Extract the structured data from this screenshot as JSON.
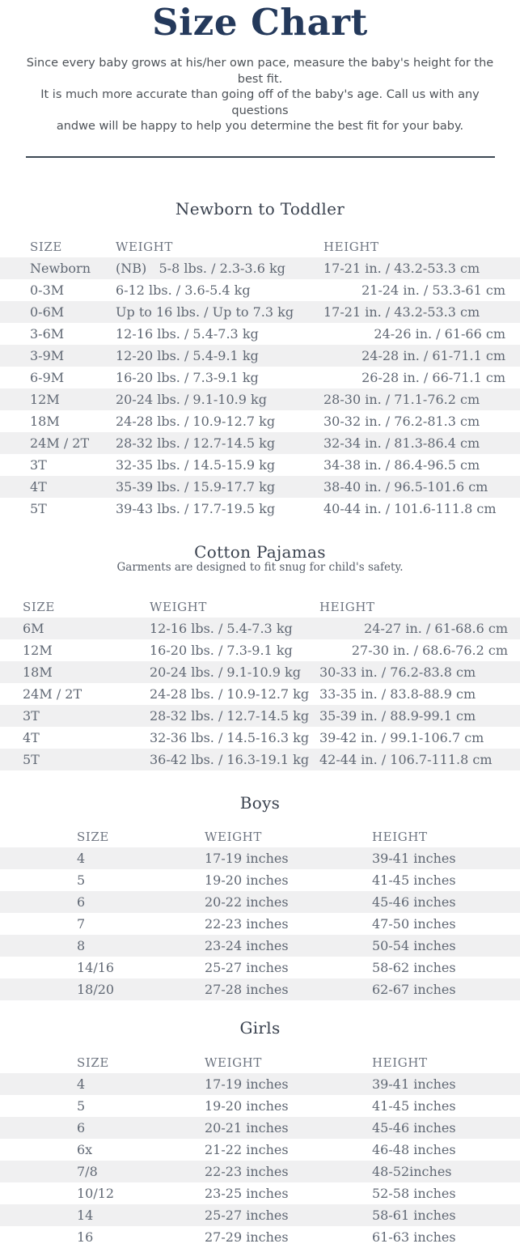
{
  "page": {
    "title": "Size Chart",
    "intro_lines": [
      "Since every baby grows at his/her own pace, measure the baby's height for the best fit.",
      "It is much more accurate than going off of the baby's age. Call us with any questions",
      "andwe will be happy to help you determine the best fit for your baby."
    ]
  },
  "colors": {
    "title_navy": "#24395b",
    "heading_slate": "#39414e",
    "body_text": "#4d5258",
    "table_text": "#5f6773",
    "column_header_text": "#6d7480",
    "row_stripe": "#f0f0f1",
    "divider": "#3d4854",
    "background": "#ffffff"
  },
  "tables": [
    {
      "id": "newborn-to-toddler",
      "title": "Newborn to Toddler",
      "subtitle": null,
      "columns": [
        "SIZE",
        "WEIGHT",
        "HEIGHT"
      ],
      "rows": [
        {
          "size": "Newborn",
          "weight": "(NB)   5-8 lbs. / 2.3-3.6 kg",
          "height": "17-21 in. / 43.2-53.3 cm",
          "height_align": "left"
        },
        {
          "size": "0-3M",
          "weight": "6-12 lbs. / 3.6-5.4 kg",
          "height": "21-24 in. / 53.3-61 cm",
          "height_align": "right"
        },
        {
          "size": "0-6M",
          "weight": "Up to 16 lbs. / Up to 7.3 kg",
          "height": "17-21 in. / 43.2-53.3 cm",
          "height_align": "left"
        },
        {
          "size": "3-6M",
          "weight": "12-16 lbs. / 5.4-7.3 kg",
          "height": "24-26 in. / 61-66 cm",
          "height_align": "right"
        },
        {
          "size": "3-9M",
          "weight": "12-20 lbs. / 5.4-9.1 kg",
          "height": "24-28 in. / 61-71.1 cm",
          "height_align": "right"
        },
        {
          "size": "6-9M",
          "weight": "16-20 lbs. / 7.3-9.1 kg",
          "height": "26-28 in. / 66-71.1 cm",
          "height_align": "right"
        },
        {
          "size": "12M",
          "weight": "20-24 lbs. / 9.1-10.9 kg",
          "height": "28-30 in. / 71.1-76.2 cm",
          "height_align": "left"
        },
        {
          "size": "18M",
          "weight": "24-28 lbs. / 10.9-12.7 kg",
          "height": "30-32 in. / 76.2-81.3 cm",
          "height_align": "left"
        },
        {
          "size": "24M / 2T",
          "weight": "28-32 lbs. / 12.7-14.5 kg",
          "height": "32-34 in. / 81.3-86.4 cm",
          "height_align": "left"
        },
        {
          "size": "3T",
          "weight": "32-35 lbs. / 14.5-15.9 kg",
          "height": "34-38 in. / 86.4-96.5 cm",
          "height_align": "left"
        },
        {
          "size": "4T",
          "weight": "35-39 lbs. / 15.9-17.7 kg",
          "height": "38-40 in. / 96.5-101.6 cm",
          "height_align": "left"
        },
        {
          "size": "5T",
          "weight": "39-43 lbs. / 17.7-19.5 kg",
          "height": "40-44 in. / 101.6-111.8 cm",
          "height_align": "left"
        }
      ]
    },
    {
      "id": "cotton-pajamas",
      "title": "Cotton Pajamas",
      "subtitle": "Garments are designed to fit snug for child's safety.",
      "columns": [
        "SIZE",
        "WEIGHT",
        "HEIGHT"
      ],
      "rows": [
        {
          "size": "6M",
          "weight": "12-16 lbs. / 5.4-7.3 kg",
          "height": "24-27 in. / 61-68.6 cm",
          "height_align": "right"
        },
        {
          "size": "12M",
          "weight": "16-20 lbs. / 7.3-9.1 kg",
          "height": "27-30 in. / 68.6-76.2 cm",
          "height_align": "right"
        },
        {
          "size": "18M",
          "weight": "20-24 lbs. / 9.1-10.9 kg",
          "height": "30-33 in. / 76.2-83.8 cm",
          "height_align": "left"
        },
        {
          "size": "24M / 2T",
          "weight": "24-28 lbs. / 10.9-12.7 kg",
          "height": "33-35 in. / 83.8-88.9 cm",
          "height_align": "left"
        },
        {
          "size": "3T",
          "weight": "28-32 lbs. / 12.7-14.5 kg",
          "height": "35-39 in. / 88.9-99.1 cm",
          "height_align": "left"
        },
        {
          "size": "4T",
          "weight": "32-36 lbs. / 14.5-16.3 kg",
          "height": "39-42 in. / 99.1-106.7 cm",
          "height_align": "left"
        },
        {
          "size": "5T",
          "weight": "36-42 lbs. / 16.3-19.1 kg",
          "height": "42-44 in. / 106.7-111.8 cm",
          "height_align": "left"
        }
      ]
    },
    {
      "id": "boys",
      "title": "Boys",
      "subtitle": null,
      "columns": [
        "SIZE",
        "WEIGHT",
        "HEIGHT"
      ],
      "rows": [
        {
          "size": "4",
          "weight": "17-19 inches",
          "height": "39-41 inches",
          "height_align": "left"
        },
        {
          "size": "5",
          "weight": "19-20 inches",
          "height": "41-45 inches",
          "height_align": "left"
        },
        {
          "size": "6",
          "weight": "20-22 inches",
          "height": "45-46 inches",
          "height_align": "left"
        },
        {
          "size": "7",
          "weight": "22-23 inches",
          "height": "47-50 inches",
          "height_align": "left"
        },
        {
          "size": "8",
          "weight": "23-24 inches",
          "height": "50-54 inches",
          "height_align": "left"
        },
        {
          "size": "14/16",
          "weight": "25-27 inches",
          "height": "58-62 inches",
          "height_align": "left"
        },
        {
          "size": "18/20",
          "weight": "27-28 inches",
          "height": "62-67 inches",
          "height_align": "left"
        }
      ]
    },
    {
      "id": "girls",
      "title": "Girls",
      "subtitle": null,
      "columns": [
        "SIZE",
        "WEIGHT",
        "HEIGHT"
      ],
      "rows": [
        {
          "size": "4",
          "weight": "17-19 inches",
          "height": "39-41 inches",
          "height_align": "left"
        },
        {
          "size": "5",
          "weight": "19-20 inches",
          "height": "41-45 inches",
          "height_align": "left"
        },
        {
          "size": "6",
          "weight": "20-21 inches",
          "height": "45-46 inches",
          "height_align": "left"
        },
        {
          "size": "6x",
          "weight": "21-22 inches",
          "height": "46-48 inches",
          "height_align": "left"
        },
        {
          "size": "7/8",
          "weight": "22-23 inches",
          "height": "48-52inches",
          "height_align": "left"
        },
        {
          "size": "10/12",
          "weight": "23-25 inches",
          "height": "52-58 inches",
          "height_align": "left"
        },
        {
          "size": "14",
          "weight": "25-27 inches",
          "height": "58-61 inches",
          "height_align": "left"
        },
        {
          "size": "16",
          "weight": "27-29 inches",
          "height": "61-63 inches",
          "height_align": "left"
        }
      ]
    }
  ]
}
